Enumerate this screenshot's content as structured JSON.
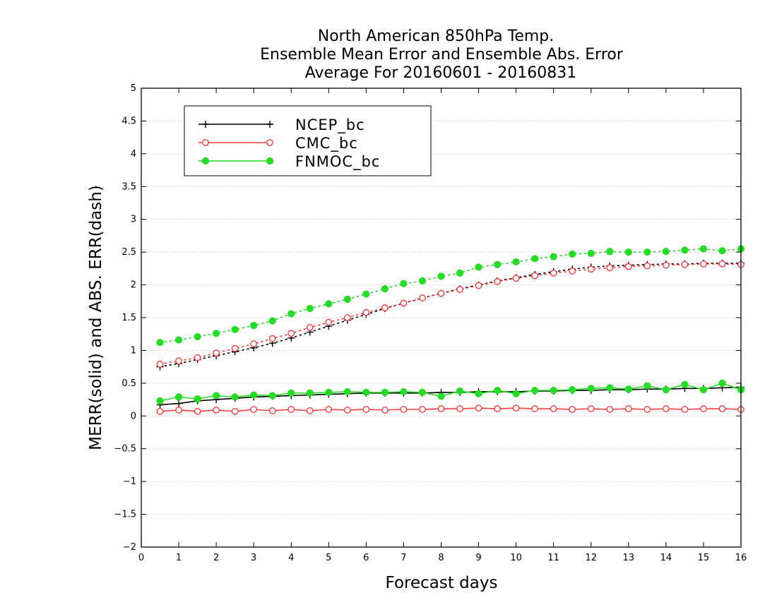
{
  "chart_data": {
    "type": "line",
    "title": [
      "North American 850hPa Temp.",
      "Ensemble Mean Error and Ensemble Abs. Error",
      "Average For 20160601 - 20160831"
    ],
    "xlabel": "Forecast days",
    "ylabel": "MERR(solid) and ABS. ERR(dash)",
    "xlim": [
      0,
      16
    ],
    "ylim": [
      -2,
      5
    ],
    "xticks": [
      "0",
      "1",
      "2",
      "3",
      "4",
      "5",
      "6",
      "7",
      "8",
      "9",
      "10",
      "11",
      "12",
      "13",
      "14",
      "15",
      "16"
    ],
    "yticks": [
      "-2",
      "-1.5",
      "-1",
      "-0.5",
      "0",
      "0.5",
      "1",
      "1.5",
      "2",
      "2.5",
      "3",
      "3.5",
      "4",
      "4.5",
      "5"
    ],
    "grid": "horizontal-dotted",
    "legend_position": "top-left",
    "x": [
      0.5,
      1,
      1.5,
      2,
      2.5,
      3,
      3.5,
      4,
      4.5,
      5,
      5.5,
      6,
      6.5,
      7,
      7.5,
      8,
      8.5,
      9,
      9.5,
      10,
      10.5,
      11,
      11.5,
      12,
      12.5,
      13,
      13.5,
      14,
      14.5,
      15,
      15.5,
      16
    ],
    "series": [
      {
        "name": "NCEP_bc",
        "color": "#000000",
        "marker": "plus",
        "mean_error": [
          0.17,
          0.19,
          0.23,
          0.25,
          0.27,
          0.29,
          0.3,
          0.31,
          0.32,
          0.33,
          0.34,
          0.35,
          0.35,
          0.35,
          0.35,
          0.36,
          0.36,
          0.37,
          0.37,
          0.37,
          0.38,
          0.38,
          0.39,
          0.39,
          0.4,
          0.4,
          0.41,
          0.41,
          0.42,
          0.42,
          0.43,
          0.44
        ],
        "abs_error": [
          0.75,
          0.8,
          0.86,
          0.92,
          0.98,
          1.04,
          1.11,
          1.19,
          1.28,
          1.37,
          1.46,
          1.55,
          1.64,
          1.72,
          1.8,
          1.87,
          1.94,
          2.0,
          2.06,
          2.11,
          2.16,
          2.2,
          2.24,
          2.27,
          2.29,
          2.3,
          2.31,
          2.32,
          2.32,
          2.33,
          2.33,
          2.33
        ]
      },
      {
        "name": "CMC_bc",
        "color": "#ff3b3b",
        "marker": "open-circle",
        "mean_error": [
          0.07,
          0.09,
          0.07,
          0.09,
          0.07,
          0.1,
          0.08,
          0.1,
          0.08,
          0.1,
          0.09,
          0.1,
          0.09,
          0.1,
          0.1,
          0.11,
          0.11,
          0.12,
          0.11,
          0.12,
          0.11,
          0.11,
          0.1,
          0.11,
          0.1,
          0.11,
          0.1,
          0.11,
          0.1,
          0.11,
          0.11,
          0.1
        ],
        "abs_error": [
          0.79,
          0.84,
          0.89,
          0.96,
          1.03,
          1.1,
          1.18,
          1.26,
          1.35,
          1.43,
          1.5,
          1.58,
          1.65,
          1.72,
          1.8,
          1.87,
          1.93,
          1.99,
          2.05,
          2.1,
          2.14,
          2.18,
          2.21,
          2.24,
          2.26,
          2.28,
          2.29,
          2.3,
          2.31,
          2.32,
          2.32,
          2.31
        ]
      },
      {
        "name": "FNMOC_bc",
        "color": "#22dd22",
        "marker": "filled-circle",
        "mean_error": [
          0.23,
          0.29,
          0.26,
          0.31,
          0.29,
          0.32,
          0.31,
          0.35,
          0.35,
          0.36,
          0.37,
          0.36,
          0.36,
          0.37,
          0.36,
          0.3,
          0.38,
          0.34,
          0.39,
          0.34,
          0.39,
          0.39,
          0.4,
          0.42,
          0.43,
          0.41,
          0.46,
          0.4,
          0.48,
          0.4,
          0.5,
          0.4
        ],
        "abs_error": [
          1.12,
          1.16,
          1.21,
          1.26,
          1.32,
          1.38,
          1.45,
          1.56,
          1.64,
          1.71,
          1.78,
          1.86,
          1.94,
          2.02,
          2.06,
          2.13,
          2.18,
          2.27,
          2.31,
          2.35,
          2.4,
          2.43,
          2.47,
          2.48,
          2.51,
          2.5,
          2.5,
          2.51,
          2.53,
          2.55,
          2.52,
          2.55
        ]
      }
    ]
  }
}
